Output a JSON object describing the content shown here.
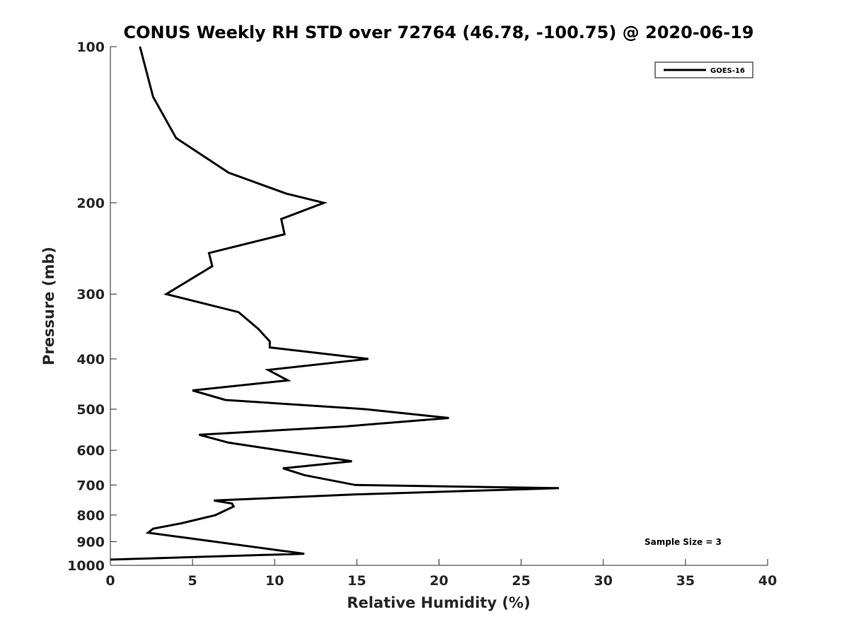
{
  "chart_data": {
    "type": "line",
    "title": "CONUS Weekly RH STD over 72764 (46.78, -100.75) @ 2020-06-19",
    "xlabel": "Relative Humidity (%)",
    "ylabel": "Pressure (mb)",
    "xlim": [
      0,
      40
    ],
    "ylim": [
      100,
      1000
    ],
    "y_scale": "log",
    "y_reversed": true,
    "x_ticks": [
      0,
      5,
      10,
      15,
      20,
      25,
      30,
      35,
      40
    ],
    "y_ticks": [
      100,
      200,
      300,
      400,
      500,
      600,
      700,
      800,
      900,
      1000
    ],
    "grid": false,
    "legend_position": "top-right",
    "series": [
      {
        "name": "GOES-16",
        "color": "#000000",
        "points": [
          [
            1.8,
            100
          ],
          [
            2.6,
            125
          ],
          [
            4.0,
            150
          ],
          [
            7.2,
            175
          ],
          [
            10.7,
            192
          ],
          [
            13.0,
            200
          ],
          [
            10.4,
            215
          ],
          [
            10.6,
            230
          ],
          [
            6.0,
            250
          ],
          [
            6.2,
            265
          ],
          [
            3.4,
            300
          ],
          [
            7.8,
            325
          ],
          [
            9.0,
            350
          ],
          [
            9.7,
            370
          ],
          [
            9.7,
            380
          ],
          [
            15.7,
            400
          ],
          [
            9.6,
            420
          ],
          [
            10.8,
            440
          ],
          [
            5.0,
            460
          ],
          [
            7.0,
            480
          ],
          [
            15.5,
            500
          ],
          [
            20.6,
            520
          ],
          [
            14.2,
            540
          ],
          [
            5.4,
            560
          ],
          [
            7.2,
            580
          ],
          [
            14.7,
            630
          ],
          [
            10.5,
            650
          ],
          [
            11.8,
            670
          ],
          [
            14.9,
            700
          ],
          [
            27.3,
            710
          ],
          [
            14.8,
            730
          ],
          [
            6.3,
            750
          ],
          [
            7.4,
            760
          ],
          [
            7.5,
            770
          ],
          [
            6.4,
            800
          ],
          [
            4.3,
            830
          ],
          [
            2.6,
            850
          ],
          [
            2.3,
            865
          ],
          [
            11.8,
            950
          ],
          [
            0.0,
            975
          ]
        ]
      }
    ],
    "annotations": [
      "Sample Size = 3"
    ]
  }
}
